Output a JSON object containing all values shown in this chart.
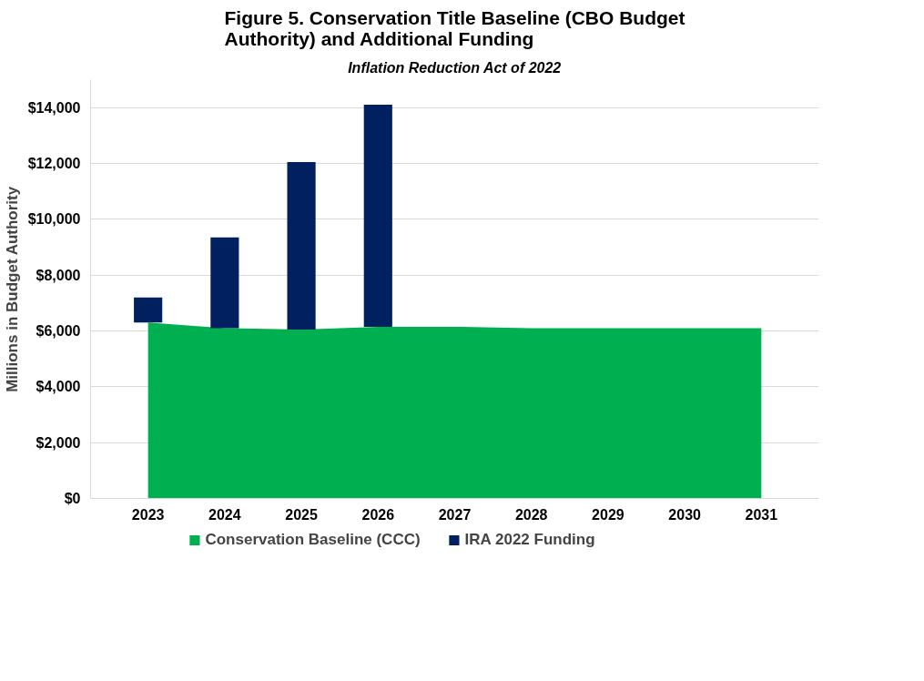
{
  "chart_data": {
    "type": "bar",
    "title": "Figure 5. Conservation Title Baseline (CBO Budget Authority) and Additional Funding",
    "subtitle": "Inflation Reduction Act of 2022",
    "ylabel": "Millions in Budget Authority",
    "categories": [
      "2023",
      "2024",
      "2025",
      "2026",
      "2027",
      "2028",
      "2029",
      "2030",
      "2031"
    ],
    "series": [
      {
        "name": "Conservation Baseline (CCC)",
        "type": "area",
        "color": "#00b050",
        "values": [
          6300,
          6100,
          6050,
          6150,
          6150,
          6100,
          6100,
          6100,
          6100
        ]
      },
      {
        "name": "IRA 2022 Funding",
        "color": "#002060",
        "values": [
          900,
          3250,
          6000,
          7950,
          null,
          null,
          null,
          null,
          null
        ],
        "base": [
          6300,
          6100,
          6050,
          6150,
          null,
          null,
          null,
          null,
          null
        ]
      }
    ],
    "ylim": [
      0,
      15000
    ],
    "yticks": [
      {
        "value": 0,
        "label": "$0"
      },
      {
        "value": 2000,
        "label": "$2,000"
      },
      {
        "value": 4000,
        "label": "$4,000"
      },
      {
        "value": 6000,
        "label": "$6,000"
      },
      {
        "value": 8000,
        "label": "$8,000"
      },
      {
        "value": 10000,
        "label": "$10,000"
      },
      {
        "value": 12000,
        "label": "$12,000"
      },
      {
        "value": 14000,
        "label": "$14,000"
      }
    ],
    "grid": "y",
    "legend": "bottom"
  }
}
